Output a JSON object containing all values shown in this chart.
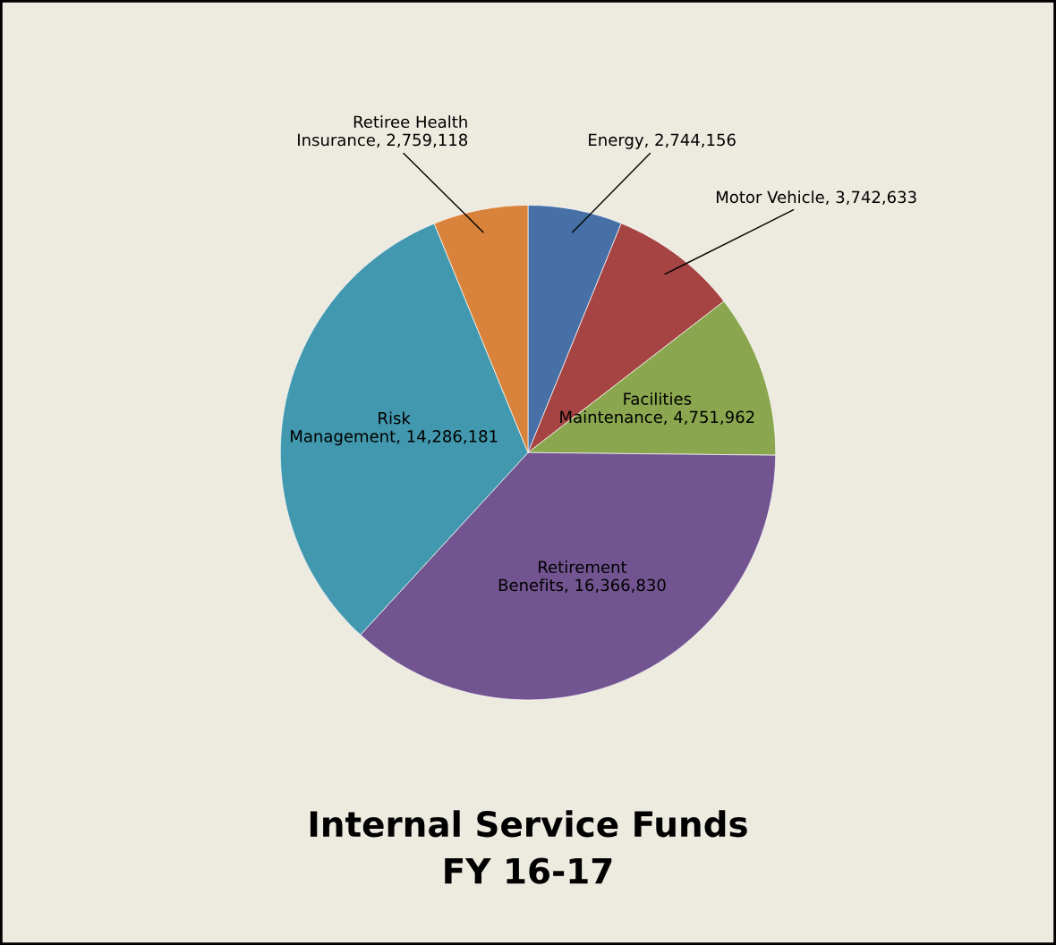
{
  "chart_data": {
    "type": "pie",
    "title": "Internal Service Funds\nFY 16-17",
    "categories": [
      "Energy",
      "Motor Vehicle",
      "Facilities Maintenance",
      "Retirement Benefits",
      "Risk Management",
      "Retiree Health Insurance"
    ],
    "values": [
      2744156,
      3742633,
      4751962,
      16366830,
      14286181,
      2759118
    ],
    "value_labels": [
      "2,744,156",
      "3,742,633",
      "4,751,962",
      "16,366,830",
      "14,286,181",
      "2,759,118"
    ],
    "colors": [
      "#4670a6",
      "#a54442",
      "#8aa64e",
      "#725590",
      "#4298ae",
      "#d8823b"
    ],
    "legend": false
  }
}
